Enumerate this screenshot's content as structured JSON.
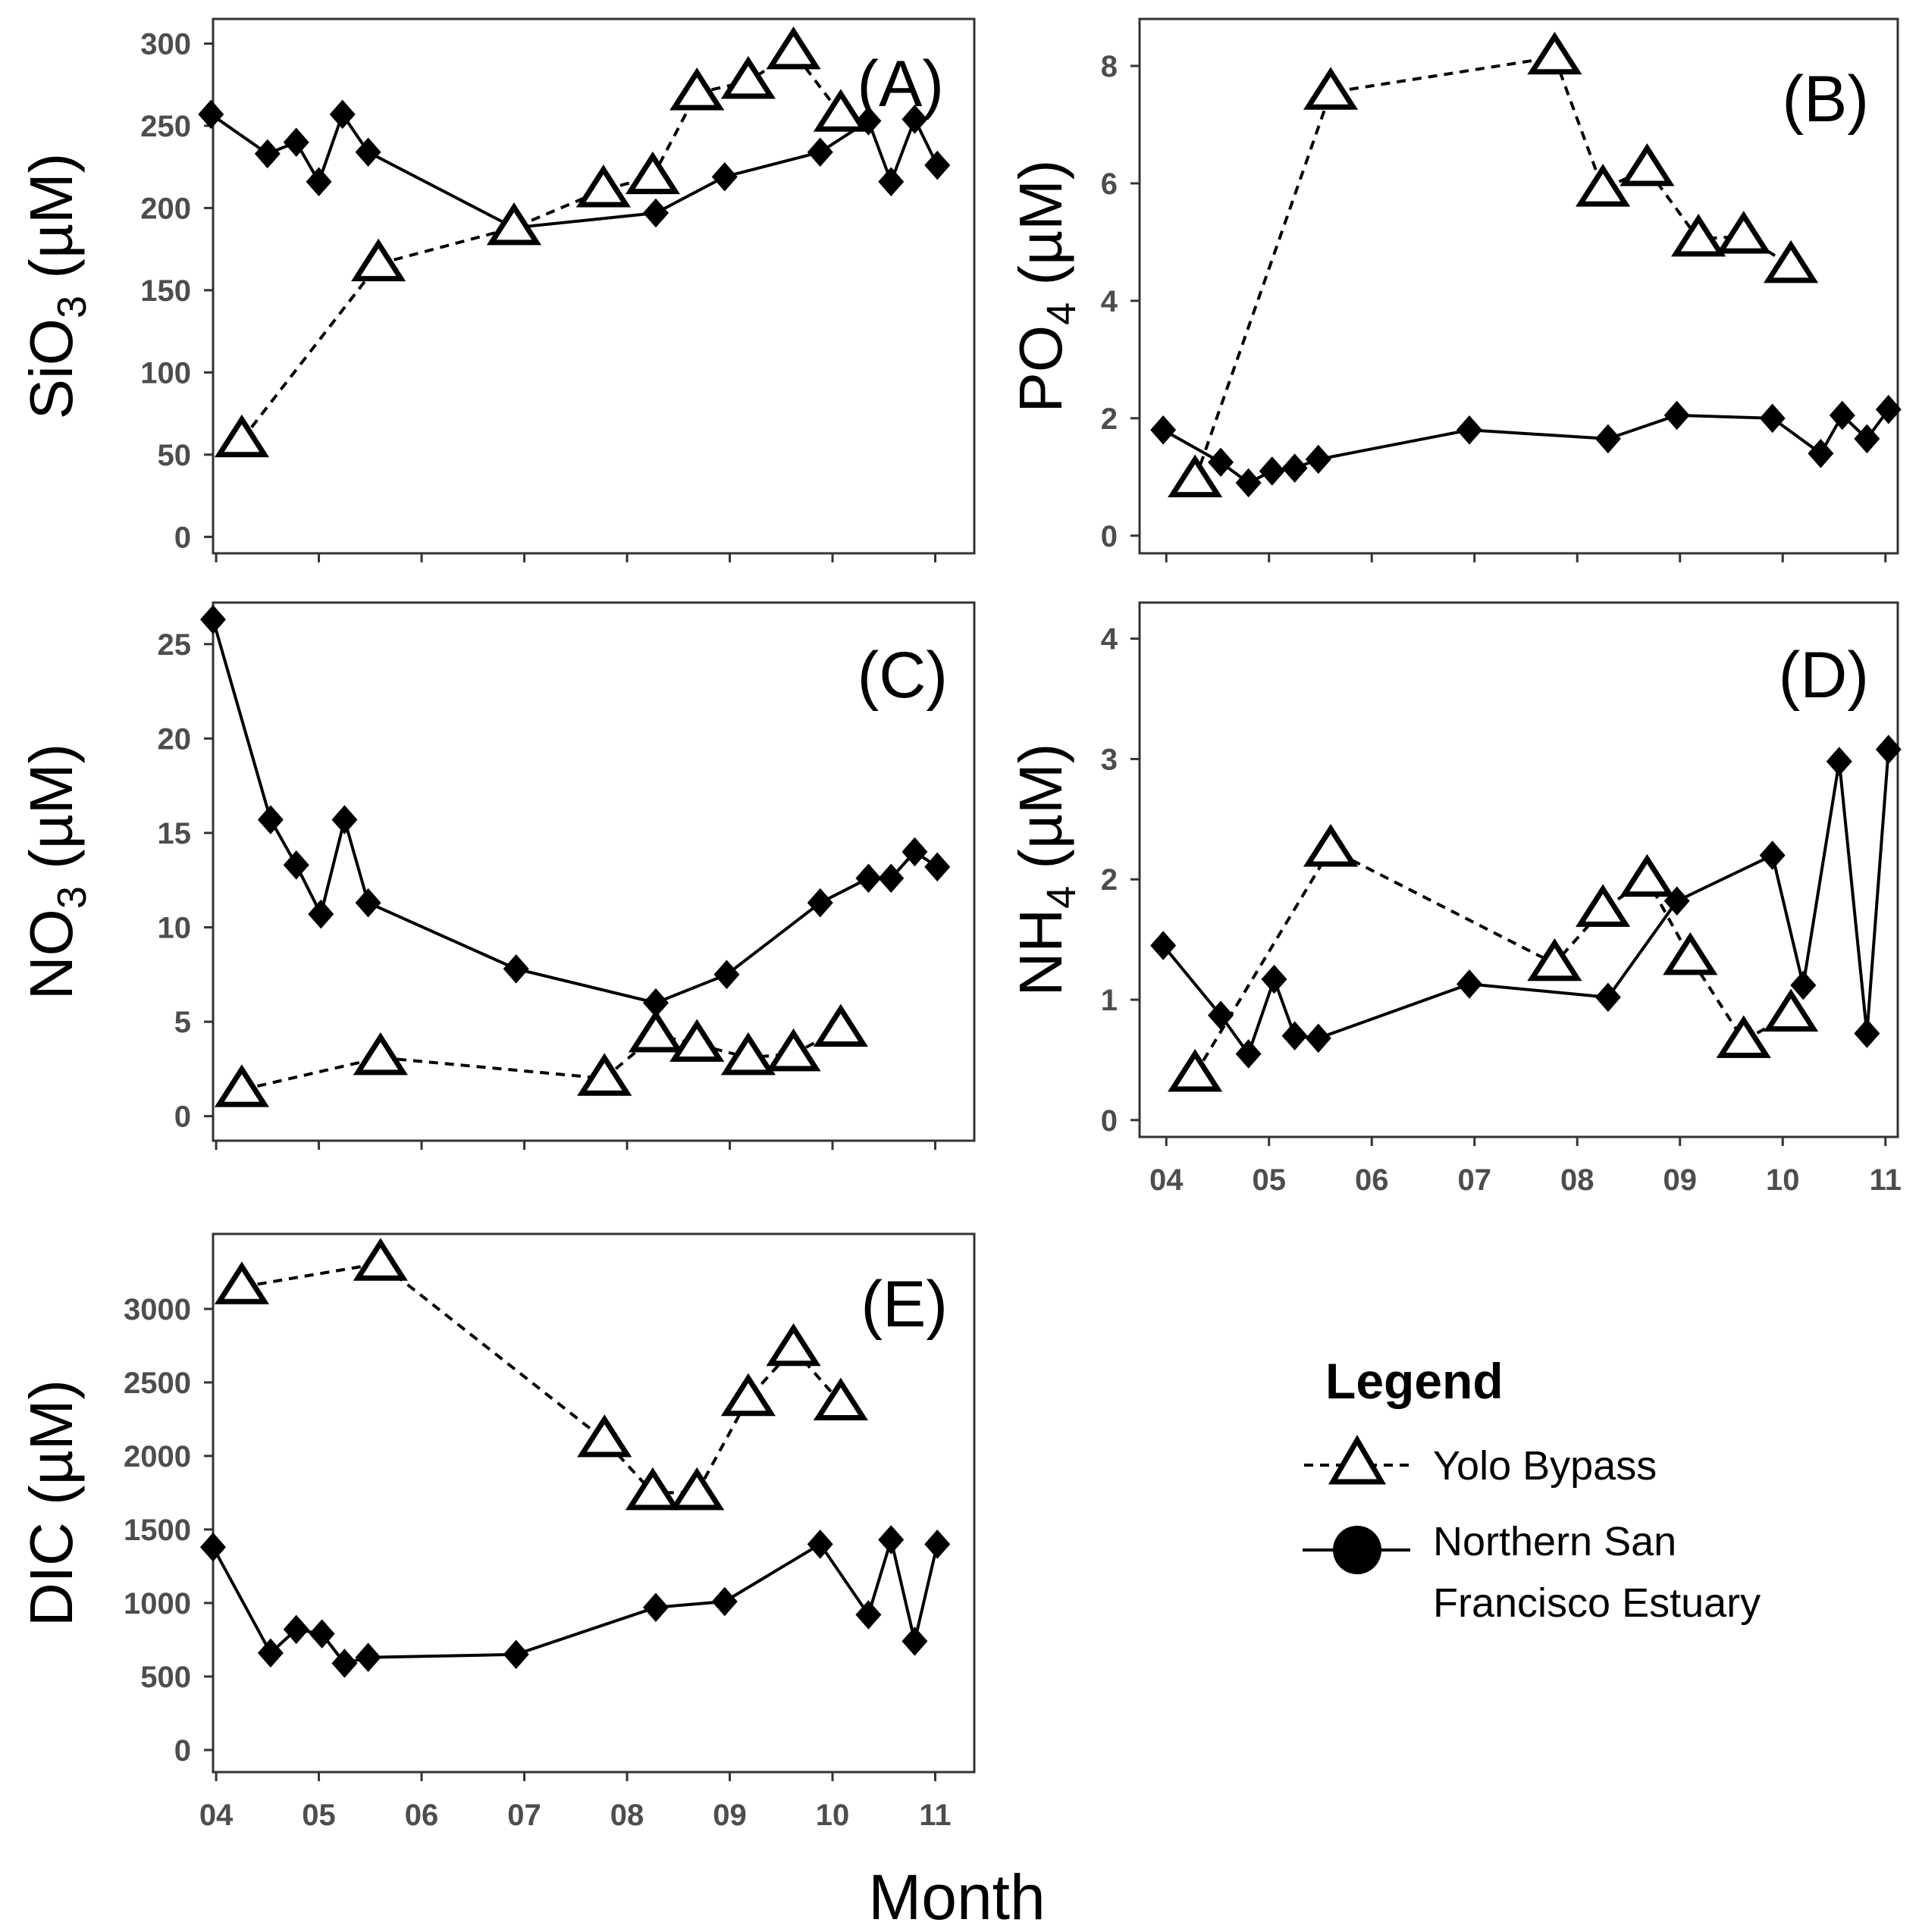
{
  "figure": {
    "xaxis_title": "Month",
    "legend": {
      "title": "Legend",
      "items": [
        {
          "series": "yolo",
          "label_lines": [
            "Yolo Bypass"
          ]
        },
        {
          "series": "nsfe",
          "label_lines": [
            "Northern San",
            "Francisco Estuary"
          ]
        }
      ]
    }
  },
  "chart_data": [
    {
      "panel": "A",
      "type": "line",
      "title": "(A)",
      "ylabel": {
        "main": "SiO",
        "sub": "3",
        "unit": " (µM)"
      },
      "ylim": [
        -10,
        315
      ],
      "yticks": [
        0,
        50,
        100,
        150,
        200,
        250,
        300
      ],
      "xlim": [
        3.97,
        11.38
      ],
      "xticks": [
        4,
        5,
        6,
        7,
        8,
        9,
        10,
        11
      ],
      "xticklabels": [
        "04",
        "05",
        "06",
        "07",
        "08",
        "09",
        "10",
        "11"
      ],
      "show_xticklabels": false,
      "series": [
        {
          "name": "Yolo Bypass",
          "style": "dashed-triangle",
          "x": [
            4.25,
            5.58,
            6.9,
            7.77,
            8.25,
            8.68,
            9.18,
            9.62,
            10.08
          ],
          "y": [
            59,
            166,
            188,
            211,
            219,
            270,
            277,
            295,
            257
          ]
        },
        {
          "name": "Northern San Francisco Estuary",
          "style": "solid-diamond",
          "x": [
            3.95,
            4.5,
            4.78,
            5.0,
            5.23,
            5.48,
            6.9,
            8.28,
            8.95,
            9.88,
            10.35,
            10.57,
            10.8,
            11.02
          ],
          "y": [
            257,
            233,
            240,
            216,
            257,
            234,
            188,
            197,
            219,
            234,
            253,
            216,
            254,
            226
          ]
        }
      ]
    },
    {
      "panel": "B",
      "type": "line",
      "title": "(B)",
      "ylabel": {
        "main": "PO",
        "sub": "4",
        "unit": " (µM)"
      },
      "ylim": [
        -0.3,
        8.8
      ],
      "yticks": [
        0,
        2,
        4,
        6,
        8
      ],
      "xlim": [
        3.74,
        11.12
      ],
      "xticks": [
        4,
        5,
        6,
        7,
        8,
        9,
        10,
        11
      ],
      "xticklabels": [
        "04",
        "05",
        "06",
        "07",
        "08",
        "09",
        "10",
        "11"
      ],
      "show_xticklabels": false,
      "series": [
        {
          "name": "Yolo Bypass",
          "style": "dashed-triangle",
          "x": [
            4.28,
            5.6,
            7.78,
            8.25,
            8.68,
            9.18,
            9.62,
            10.08
          ],
          "y": [
            0.95,
            7.55,
            8.15,
            5.9,
            6.25,
            5.05,
            5.1,
            4.6
          ]
        },
        {
          "name": "Northern San Francisco Estuary",
          "style": "solid-diamond",
          "x": [
            3.97,
            4.53,
            4.8,
            5.03,
            5.25,
            5.48,
            6.95,
            8.3,
            8.97,
            9.9,
            10.37,
            10.58,
            10.82,
            11.03
          ],
          "y": [
            1.8,
            1.25,
            0.9,
            1.1,
            1.15,
            1.3,
            1.8,
            1.65,
            2.05,
            2.0,
            1.4,
            2.05,
            1.65,
            2.15
          ]
        }
      ]
    },
    {
      "panel": "C",
      "type": "line",
      "title": "(C)",
      "ylabel": {
        "main": "NO",
        "sub": "3",
        "unit": " (µM)"
      },
      "ylim": [
        -1.3,
        27.2
      ],
      "yticks": [
        0,
        5,
        10,
        15,
        20,
        25
      ],
      "xlim": [
        3.97,
        11.38
      ],
      "xticks": [
        4,
        5,
        6,
        7,
        8,
        9,
        10,
        11
      ],
      "xticklabels": [
        "04",
        "05",
        "06",
        "07",
        "08",
        "09",
        "10",
        "11"
      ],
      "show_xticklabels": false,
      "series": [
        {
          "name": "Yolo Bypass",
          "style": "dashed-triangle",
          "x": [
            4.25,
            5.6,
            7.78,
            8.28,
            8.68,
            9.18,
            9.62,
            10.08
          ],
          "y": [
            1.4,
            3.1,
            2.0,
            4.3,
            3.8,
            3.1,
            3.3,
            4.6
          ]
        },
        {
          "name": "Northern San Francisco Estuary",
          "style": "solid-diamond",
          "x": [
            3.97,
            4.53,
            4.78,
            5.02,
            5.25,
            5.48,
            6.92,
            8.28,
            8.97,
            9.88,
            10.35,
            10.57,
            10.8,
            11.02
          ],
          "y": [
            26.3,
            15.7,
            13.3,
            10.7,
            15.7,
            11.3,
            7.8,
            6.0,
            7.5,
            11.3,
            12.6,
            12.6,
            14.0,
            13.2
          ]
        }
      ]
    },
    {
      "panel": "D",
      "type": "line",
      "title": "(D)",
      "ylabel": {
        "main": "NH",
        "sub": "4",
        "unit": " (µM)"
      },
      "ylim": [
        -0.14,
        4.3
      ],
      "yticks": [
        0,
        1,
        2,
        3,
        4
      ],
      "xlim": [
        3.74,
        11.12
      ],
      "xticks": [
        4,
        5,
        6,
        7,
        8,
        9,
        10,
        11
      ],
      "xticklabels": [
        "04",
        "05",
        "06",
        "07",
        "08",
        "09",
        "10",
        "11"
      ],
      "show_xticklabels": true,
      "series": [
        {
          "name": "Yolo Bypass",
          "style": "dashed-triangle",
          "x": [
            4.28,
            5.6,
            7.78,
            8.25,
            8.68,
            9.1,
            9.62,
            10.08
          ],
          "y": [
            0.38,
            2.25,
            1.3,
            1.75,
            2.0,
            1.35,
            0.66,
            0.88
          ]
        },
        {
          "name": "Northern San Francisco Estuary",
          "style": "solid-diamond",
          "x": [
            3.97,
            4.53,
            4.8,
            5.05,
            5.25,
            5.48,
            6.95,
            8.3,
            8.97,
            9.9,
            10.2,
            10.55,
            10.82,
            11.03
          ],
          "y": [
            1.45,
            0.87,
            0.55,
            1.17,
            0.7,
            0.68,
            1.13,
            1.02,
            1.82,
            2.2,
            1.12,
            2.98,
            0.72,
            3.08
          ]
        }
      ]
    },
    {
      "panel": "E",
      "type": "line",
      "title": "(E)",
      "ylabel": {
        "main": "DIC",
        "sub": "",
        "unit": " (µM)"
      },
      "ylim": [
        -150,
        3510
      ],
      "yticks": [
        0,
        500,
        1000,
        1500,
        2000,
        2500,
        3000
      ],
      "xlim": [
        3.97,
        11.38
      ],
      "xticks": [
        4,
        5,
        6,
        7,
        8,
        9,
        10,
        11
      ],
      "xticklabels": [
        "04",
        "05",
        "06",
        "07",
        "08",
        "09",
        "10",
        "11"
      ],
      "show_xticklabels": true,
      "series": [
        {
          "name": "Yolo Bypass",
          "style": "dashed-triangle",
          "x": [
            4.25,
            5.6,
            7.78,
            8.25,
            8.68,
            9.18,
            9.62,
            10.08
          ],
          "y": [
            3150,
            3310,
            2110,
            1750,
            1750,
            2390,
            2730,
            2360
          ]
        },
        {
          "name": "Northern San Francisco Estuary",
          "style": "solid-diamond",
          "x": [
            3.97,
            4.53,
            4.78,
            5.03,
            5.25,
            5.48,
            6.92,
            8.28,
            8.95,
            9.88,
            10.35,
            10.57,
            10.8,
            11.02
          ],
          "y": [
            1380,
            660,
            820,
            790,
            590,
            630,
            650,
            970,
            1010,
            1400,
            920,
            1430,
            740,
            1400
          ]
        }
      ]
    }
  ]
}
